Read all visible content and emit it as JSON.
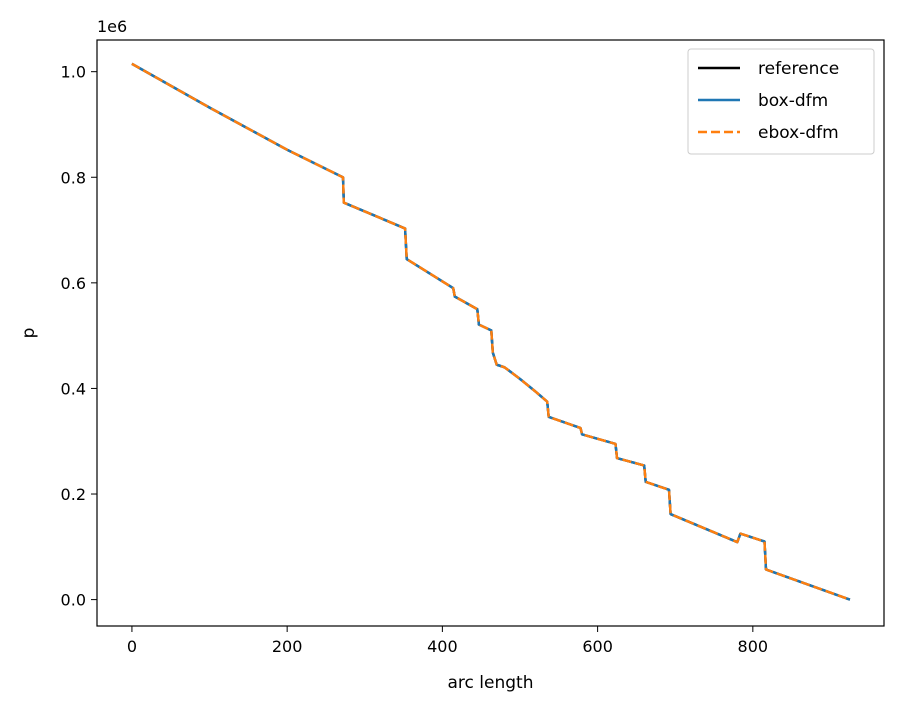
{
  "chart_data": {
    "type": "line",
    "xlabel": "arc length",
    "ylabel": "p",
    "y_offset_text": "1e6",
    "xlim": [
      -45,
      969
    ],
    "ylim": [
      -0.05,
      1.06
    ],
    "xticks": [
      0,
      200,
      400,
      600,
      800
    ],
    "xtick_labels": [
      "0",
      "200",
      "400",
      "600",
      "800"
    ],
    "yticks": [
      0.0,
      0.2,
      0.4,
      0.6,
      0.8,
      1.0
    ],
    "ytick_labels": [
      "0.0",
      "0.2",
      "0.4",
      "0.6",
      "0.8",
      "1.0"
    ],
    "grid": false,
    "legend_position": "upper right",
    "x": [
      0,
      100,
      200,
      272,
      273,
      352,
      354,
      414,
      416,
      445,
      447,
      463,
      465,
      470,
      480,
      500,
      520,
      535,
      537,
      578,
      580,
      623,
      625,
      660,
      662,
      692,
      694,
      780,
      784,
      815,
      817,
      925
    ],
    "series": [
      {
        "name": "reference",
        "color": "#000000",
        "style": "solid",
        "values": [
          1.015,
          0.932,
          0.852,
          0.8,
          0.752,
          0.703,
          0.645,
          0.59,
          0.574,
          0.55,
          0.521,
          0.51,
          0.468,
          0.445,
          0.44,
          0.418,
          0.394,
          0.375,
          0.346,
          0.325,
          0.313,
          0.295,
          0.268,
          0.254,
          0.223,
          0.208,
          0.162,
          0.109,
          0.125,
          0.11,
          0.057,
          0.0
        ]
      },
      {
        "name": "box-dfm",
        "color": "#1f77b4",
        "style": "solid",
        "values": [
          1.015,
          0.932,
          0.852,
          0.8,
          0.752,
          0.703,
          0.645,
          0.59,
          0.574,
          0.55,
          0.521,
          0.51,
          0.468,
          0.445,
          0.44,
          0.418,
          0.394,
          0.375,
          0.346,
          0.325,
          0.313,
          0.295,
          0.268,
          0.254,
          0.223,
          0.208,
          0.162,
          0.109,
          0.125,
          0.11,
          0.057,
          0.0
        ]
      },
      {
        "name": "ebox-dfm",
        "color": "#ff7f0e",
        "style": "dashed",
        "values": [
          1.015,
          0.932,
          0.852,
          0.8,
          0.752,
          0.703,
          0.645,
          0.59,
          0.574,
          0.55,
          0.521,
          0.51,
          0.468,
          0.445,
          0.44,
          0.418,
          0.394,
          0.375,
          0.346,
          0.325,
          0.313,
          0.295,
          0.268,
          0.254,
          0.223,
          0.208,
          0.162,
          0.109,
          0.125,
          0.11,
          0.057,
          0.0
        ]
      }
    ]
  }
}
